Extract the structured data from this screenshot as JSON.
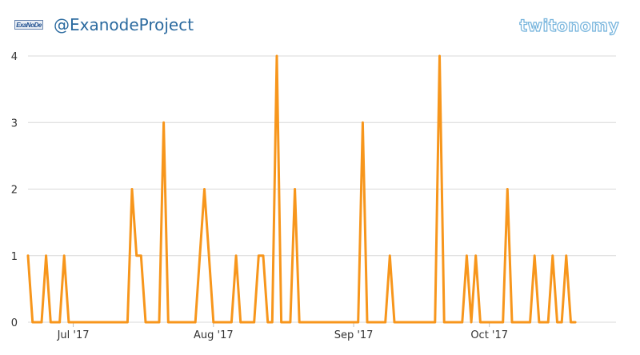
{
  "header": {
    "avatar_text": "ExaNoDe",
    "handle": "@ExanodeProject",
    "brand": "twitonomy"
  },
  "colors": {
    "line": "#f7961c",
    "grid": "#d8d8d8",
    "handle": "#2b6a9f",
    "brand": "#74b3dc"
  },
  "chart_data": {
    "type": "line",
    "title": "",
    "xlabel": "",
    "ylabel": "",
    "ylim": [
      0,
      4
    ],
    "yticks": [
      0,
      1,
      2,
      3,
      4
    ],
    "xticks": [
      {
        "label": "Jul '17",
        "date": "2017-07-01"
      },
      {
        "label": "Aug '17",
        "date": "2017-08-01"
      },
      {
        "label": "Sep '17",
        "date": "2017-09-01"
      },
      {
        "label": "Oct '17",
        "date": "2017-10-01"
      }
    ],
    "x_start": "2017-06-21",
    "x_end": "2017-10-29",
    "series": [
      {
        "name": "",
        "points": [
          [
            "2017-06-21",
            1
          ],
          [
            "2017-06-22",
            0
          ],
          [
            "2017-06-23",
            0
          ],
          [
            "2017-06-24",
            0
          ],
          [
            "2017-06-25",
            1
          ],
          [
            "2017-06-26",
            0
          ],
          [
            "2017-06-27",
            0
          ],
          [
            "2017-06-28",
            0
          ],
          [
            "2017-06-29",
            1
          ],
          [
            "2017-06-30",
            0
          ],
          [
            "2017-07-01",
            0
          ],
          [
            "2017-07-02",
            0
          ],
          [
            "2017-07-03",
            0
          ],
          [
            "2017-07-04",
            0
          ],
          [
            "2017-07-05",
            0
          ],
          [
            "2017-07-06",
            0
          ],
          [
            "2017-07-07",
            0
          ],
          [
            "2017-07-08",
            0
          ],
          [
            "2017-07-09",
            0
          ],
          [
            "2017-07-10",
            0
          ],
          [
            "2017-07-11",
            0
          ],
          [
            "2017-07-12",
            0
          ],
          [
            "2017-07-13",
            0
          ],
          [
            "2017-07-14",
            2
          ],
          [
            "2017-07-15",
            1
          ],
          [
            "2017-07-16",
            1
          ],
          [
            "2017-07-17",
            0
          ],
          [
            "2017-07-18",
            0
          ],
          [
            "2017-07-19",
            0
          ],
          [
            "2017-07-20",
            0
          ],
          [
            "2017-07-21",
            3
          ],
          [
            "2017-07-22",
            0
          ],
          [
            "2017-07-23",
            0
          ],
          [
            "2017-07-24",
            0
          ],
          [
            "2017-07-25",
            0
          ],
          [
            "2017-07-26",
            0
          ],
          [
            "2017-07-27",
            0
          ],
          [
            "2017-07-28",
            0
          ],
          [
            "2017-07-29",
            1
          ],
          [
            "2017-07-30",
            2
          ],
          [
            "2017-07-31",
            1
          ],
          [
            "2017-08-01",
            0
          ],
          [
            "2017-08-02",
            0
          ],
          [
            "2017-08-03",
            0
          ],
          [
            "2017-08-04",
            0
          ],
          [
            "2017-08-05",
            0
          ],
          [
            "2017-08-06",
            1
          ],
          [
            "2017-08-07",
            0
          ],
          [
            "2017-08-08",
            0
          ],
          [
            "2017-08-09",
            0
          ],
          [
            "2017-08-10",
            0
          ],
          [
            "2017-08-11",
            1
          ],
          [
            "2017-08-12",
            1
          ],
          [
            "2017-08-13",
            0
          ],
          [
            "2017-08-14",
            0
          ],
          [
            "2017-08-15",
            4
          ],
          [
            "2017-08-16",
            0
          ],
          [
            "2017-08-17",
            0
          ],
          [
            "2017-08-18",
            0
          ],
          [
            "2017-08-19",
            2
          ],
          [
            "2017-08-20",
            0
          ],
          [
            "2017-08-21",
            0
          ],
          [
            "2017-08-22",
            0
          ],
          [
            "2017-08-23",
            0
          ],
          [
            "2017-08-24",
            0
          ],
          [
            "2017-08-25",
            0
          ],
          [
            "2017-08-26",
            0
          ],
          [
            "2017-08-27",
            0
          ],
          [
            "2017-08-28",
            0
          ],
          [
            "2017-08-29",
            0
          ],
          [
            "2017-08-30",
            0
          ],
          [
            "2017-08-31",
            0
          ],
          [
            "2017-09-01",
            0
          ],
          [
            "2017-09-02",
            0
          ],
          [
            "2017-09-03",
            3
          ],
          [
            "2017-09-04",
            0
          ],
          [
            "2017-09-05",
            0
          ],
          [
            "2017-09-06",
            0
          ],
          [
            "2017-09-07",
            0
          ],
          [
            "2017-09-08",
            0
          ],
          [
            "2017-09-09",
            1
          ],
          [
            "2017-09-10",
            0
          ],
          [
            "2017-09-11",
            0
          ],
          [
            "2017-09-12",
            0
          ],
          [
            "2017-09-13",
            0
          ],
          [
            "2017-09-14",
            0
          ],
          [
            "2017-09-15",
            0
          ],
          [
            "2017-09-16",
            0
          ],
          [
            "2017-09-17",
            0
          ],
          [
            "2017-09-18",
            0
          ],
          [
            "2017-09-19",
            0
          ],
          [
            "2017-09-20",
            4
          ],
          [
            "2017-09-21",
            0
          ],
          [
            "2017-09-22",
            0
          ],
          [
            "2017-09-23",
            0
          ],
          [
            "2017-09-24",
            0
          ],
          [
            "2017-09-25",
            0
          ],
          [
            "2017-09-26",
            1
          ],
          [
            "2017-09-27",
            0
          ],
          [
            "2017-09-28",
            1
          ],
          [
            "2017-09-29",
            0
          ],
          [
            "2017-09-30",
            0
          ],
          [
            "2017-10-01",
            0
          ],
          [
            "2017-10-02",
            0
          ],
          [
            "2017-10-03",
            0
          ],
          [
            "2017-10-04",
            0
          ],
          [
            "2017-10-05",
            2
          ],
          [
            "2017-10-06",
            0
          ],
          [
            "2017-10-07",
            0
          ],
          [
            "2017-10-08",
            0
          ],
          [
            "2017-10-09",
            0
          ],
          [
            "2017-10-10",
            0
          ],
          [
            "2017-10-11",
            1
          ],
          [
            "2017-10-12",
            0
          ],
          [
            "2017-10-13",
            0
          ],
          [
            "2017-10-14",
            0
          ],
          [
            "2017-10-15",
            1
          ],
          [
            "2017-10-16",
            0
          ],
          [
            "2017-10-17",
            0
          ],
          [
            "2017-10-18",
            1
          ],
          [
            "2017-10-19",
            0
          ],
          [
            "2017-10-20",
            0
          ]
        ]
      }
    ]
  }
}
